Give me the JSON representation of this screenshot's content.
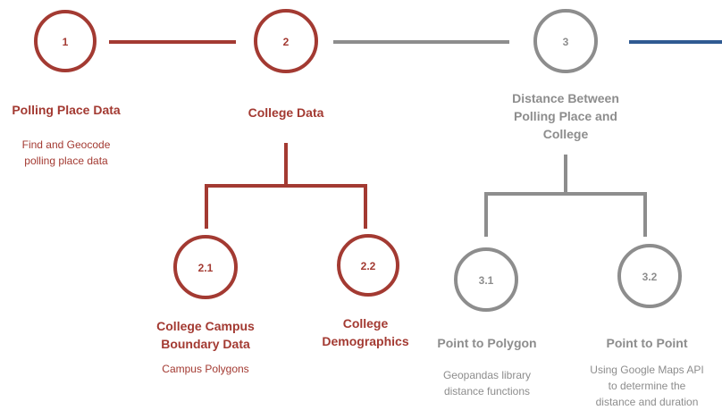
{
  "colors": {
    "red": "#a33a32",
    "gray": "#8d8d8d",
    "blue": "#2f5a92"
  },
  "nodes": {
    "n1": {
      "number": "1",
      "title": [
        "Polling Place Data"
      ],
      "desc": [
        "Find and Geocode",
        "polling place data"
      ]
    },
    "n2": {
      "number": "2",
      "title": [
        "College Data"
      ],
      "desc": []
    },
    "n3": {
      "number": "3",
      "title": [
        "Distance Between",
        "Polling Place and",
        "College"
      ],
      "desc": []
    },
    "n21": {
      "number": "2.1",
      "title": [
        "College Campus",
        "Boundary Data"
      ],
      "desc": [
        "Campus Polygons"
      ]
    },
    "n22": {
      "number": "2.2",
      "title": [
        "College",
        "Demographics"
      ],
      "desc": []
    },
    "n31": {
      "number": "3.1",
      "title": [
        "Point to Polygon"
      ],
      "desc": [
        "Geopandas library",
        "distance functions"
      ]
    },
    "n32": {
      "number": "3.2",
      "title": [
        "Point to Point"
      ],
      "desc": [
        "Using Google Maps API",
        "to determine the",
        "distance and duration"
      ]
    }
  }
}
